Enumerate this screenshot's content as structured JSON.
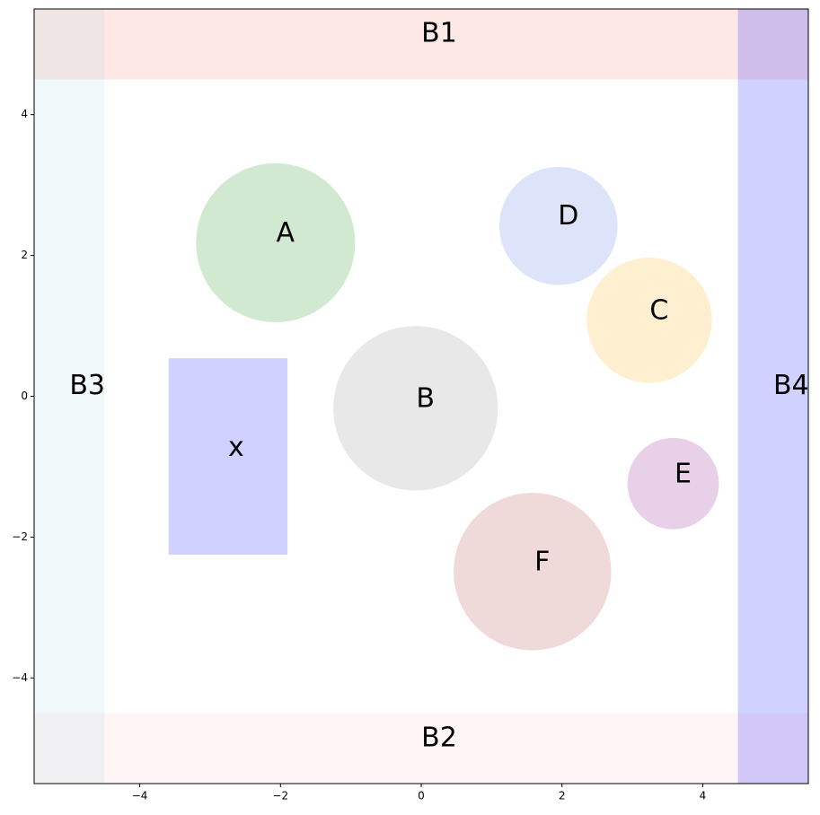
{
  "chart_data": {
    "type": "shapes",
    "xlim": [
      -5.5,
      5.5
    ],
    "ylim": [
      -5.5,
      5.5
    ],
    "xticks": [
      {
        "value": -4,
        "label": "−4"
      },
      {
        "value": -2,
        "label": "−2"
      },
      0,
      2,
      4
    ],
    "yticks": [
      {
        "value": -4,
        "label": "−4"
      },
      {
        "value": -2,
        "label": "−2"
      },
      0,
      2,
      4
    ],
    "alpha": 0.18,
    "bands": [
      {
        "label": "B1",
        "x": [
          -5.5,
          5.5
        ],
        "y": [
          4.5,
          5.5
        ],
        "color": "#fa8072"
      },
      {
        "label": "B2",
        "x": [
          -5.5,
          5.5
        ],
        "y": [
          -5.5,
          -4.5
        ],
        "color": "#ffc0cb"
      },
      {
        "label": "B3",
        "x": [
          -5.5,
          -4.5
        ],
        "y": [
          -5.5,
          5.5
        ],
        "color": "#add8e6"
      },
      {
        "label": "B4",
        "x": [
          4.5,
          5.5
        ],
        "y": [
          -5.5,
          5.5
        ],
        "color": "#0000ff"
      }
    ],
    "circles": [
      {
        "label": "A",
        "x": -2.07,
        "y": 2.18,
        "r": 1.13,
        "color": "#008000"
      },
      {
        "label": "B",
        "x": -0.08,
        "y": -0.17,
        "r": 1.17,
        "color": "#808080"
      },
      {
        "label": "C",
        "x": 3.24,
        "y": 1.08,
        "r": 0.89,
        "color": "#ffa500"
      },
      {
        "label": "D",
        "x": 1.95,
        "y": 2.42,
        "r": 0.84,
        "color": "#4169e1"
      },
      {
        "label": "E",
        "x": 3.58,
        "y": -1.24,
        "r": 0.65,
        "color": "#800080"
      },
      {
        "label": "F",
        "x": 1.58,
        "y": -2.49,
        "r": 1.12,
        "color": "#a52a2a"
      }
    ],
    "rects": [
      {
        "label": "x",
        "x": [
          -3.59,
          -1.9
        ],
        "y": [
          -2.25,
          0.54
        ],
        "color": "#0000ff"
      }
    ]
  }
}
